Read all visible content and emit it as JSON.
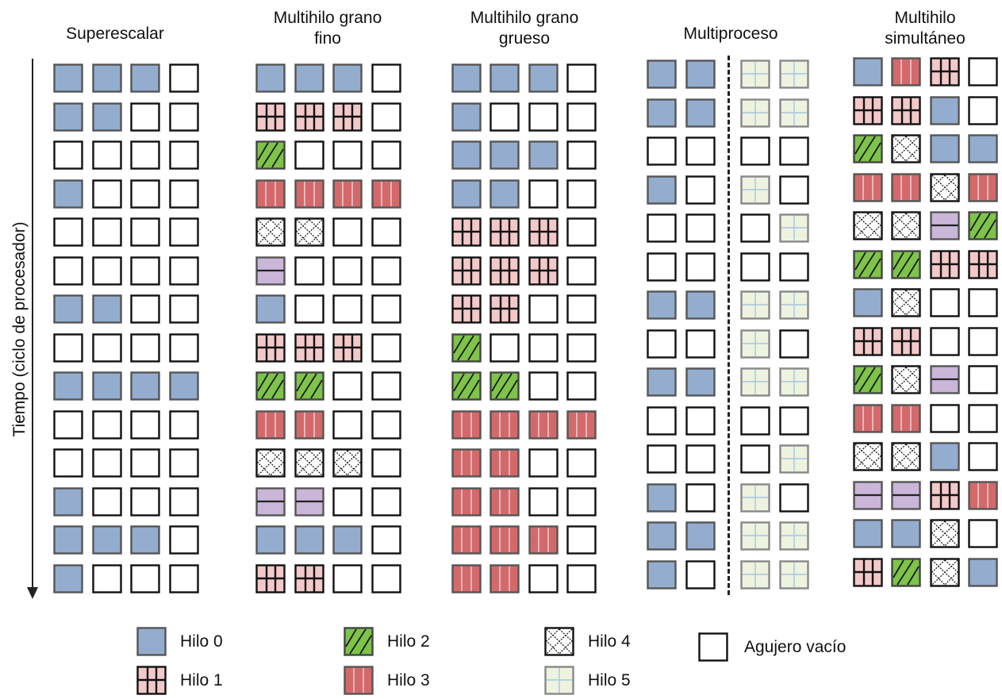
{
  "axis_label": "Tiempo (ciclo de procesador)",
  "colors": {
    "h0": "#94adcf",
    "h1": "#f2c8c8",
    "h2": "#7ec34a",
    "h3": "#d4696a",
    "h4": "#ffffff",
    "h5": "#eef3e0",
    "h6": "#c9b6d8",
    "empty": "#ffffff"
  },
  "columns": [
    {
      "title": "Superescalar",
      "grid": [
        [
          "h0",
          "h0",
          "h0",
          "e"
        ],
        [
          "h0",
          "h0",
          "e",
          "e"
        ],
        [
          "e",
          "e",
          "e",
          "e"
        ],
        [
          "h0",
          "e",
          "e",
          "e"
        ],
        [
          "e",
          "e",
          "e",
          "e"
        ],
        [
          "e",
          "e",
          "e",
          "e"
        ],
        [
          "h0",
          "h0",
          "e",
          "e"
        ],
        [
          "e",
          "e",
          "e",
          "e"
        ],
        [
          "h0",
          "h0",
          "h0",
          "h0"
        ],
        [
          "e",
          "e",
          "e",
          "e"
        ],
        [
          "e",
          "e",
          "e",
          "e"
        ],
        [
          "h0",
          "e",
          "e",
          "e"
        ],
        [
          "h0",
          "h0",
          "h0",
          "e"
        ],
        [
          "h0",
          "e",
          "e",
          "e"
        ]
      ]
    },
    {
      "title": "Multihilo grano\nfino",
      "grid": [
        [
          "h0",
          "h0",
          "h0",
          "e"
        ],
        [
          "h1",
          "h1",
          "h1",
          "e"
        ],
        [
          "h2",
          "e",
          "e",
          "e"
        ],
        [
          "h3",
          "h3",
          "h3",
          "h3"
        ],
        [
          "h4",
          "h4",
          "e",
          "e"
        ],
        [
          "h6",
          "e",
          "e",
          "e"
        ],
        [
          "h0",
          "e",
          "e",
          "e"
        ],
        [
          "h1",
          "h1",
          "h1",
          "e"
        ],
        [
          "h2",
          "h2",
          "e",
          "e"
        ],
        [
          "h3",
          "h3",
          "e",
          "e"
        ],
        [
          "h4",
          "h4",
          "h4",
          "e"
        ],
        [
          "h6",
          "h6",
          "e",
          "e"
        ],
        [
          "h0",
          "h0",
          "h0",
          "e"
        ],
        [
          "h1",
          "h1",
          "e",
          "e"
        ]
      ]
    },
    {
      "title": "Multihilo grano\ngrueso",
      "grid": [
        [
          "h0",
          "h0",
          "h0",
          "e"
        ],
        [
          "h0",
          "e",
          "e",
          "e"
        ],
        [
          "h0",
          "h0",
          "h0",
          "e"
        ],
        [
          "h0",
          "h0",
          "e",
          "e"
        ],
        [
          "h1",
          "h1",
          "h1",
          "e"
        ],
        [
          "h1",
          "h1",
          "h1",
          "e"
        ],
        [
          "h1",
          "h1",
          "e",
          "e"
        ],
        [
          "h2",
          "e",
          "e",
          "e"
        ],
        [
          "h2",
          "h2",
          "e",
          "e"
        ],
        [
          "h3",
          "h3",
          "h3",
          "h3"
        ],
        [
          "h3",
          "h3",
          "e",
          "e"
        ],
        [
          "h3",
          "h3",
          "e",
          "e"
        ],
        [
          "h3",
          "h3",
          "h3",
          "e"
        ],
        [
          "h3",
          "h3",
          "e",
          "e"
        ]
      ]
    },
    {
      "title": "Multiproceso",
      "grid": [
        [
          "h0",
          "h0",
          "h5",
          "h5"
        ],
        [
          "h0",
          "h0",
          "h5",
          "h5"
        ],
        [
          "e",
          "e",
          "e",
          "e"
        ],
        [
          "h0",
          "e",
          "h5",
          "e"
        ],
        [
          "e",
          "e",
          "e",
          "h5"
        ],
        [
          "e",
          "e",
          "e",
          "e"
        ],
        [
          "h0",
          "h0",
          "h5",
          "h5"
        ],
        [
          "e",
          "e",
          "h5",
          "e"
        ],
        [
          "h0",
          "h0",
          "h5",
          "h5"
        ],
        [
          "e",
          "e",
          "e",
          "e"
        ],
        [
          "e",
          "e",
          "e",
          "h5"
        ],
        [
          "h0",
          "e",
          "h5",
          "e"
        ],
        [
          "h0",
          "h0",
          "h5",
          "h5"
        ],
        [
          "h0",
          "e",
          "h5",
          "h5"
        ]
      ]
    },
    {
      "title": "Multihilo\nsimultáneo",
      "grid": [
        [
          "h0",
          "h3",
          "h1",
          "e"
        ],
        [
          "h1",
          "h1",
          "h0",
          "e"
        ],
        [
          "h2",
          "h4",
          "h0",
          "h0"
        ],
        [
          "h3",
          "h3",
          "h4",
          "h3"
        ],
        [
          "h4",
          "h4",
          "h6",
          "h2"
        ],
        [
          "h2",
          "h2",
          "h1",
          "h1"
        ],
        [
          "h0",
          "h4",
          "e",
          "e"
        ],
        [
          "h1",
          "h1",
          "e",
          "e"
        ],
        [
          "h2",
          "h4",
          "h6",
          "e"
        ],
        [
          "h3",
          "h3",
          "e",
          "e"
        ],
        [
          "h4",
          "h4",
          "h0",
          "e"
        ],
        [
          "h6",
          "h6",
          "h1",
          "h3"
        ],
        [
          "h0",
          "h0",
          "h4",
          "e"
        ],
        [
          "h1",
          "h2",
          "h4",
          "h0"
        ]
      ]
    }
  ],
  "legend": [
    {
      "pattern": "h0",
      "label": "Hilo 0"
    },
    {
      "pattern": "h1",
      "label": "Hilo 1"
    },
    {
      "pattern": "h2",
      "label": "Hilo 2"
    },
    {
      "pattern": "h3",
      "label": "Hilo 3"
    },
    {
      "pattern": "h4",
      "label": "Hilo 4"
    },
    {
      "pattern": "h5",
      "label": "Hilo 5"
    },
    {
      "pattern": "e",
      "label": "Agujero vacío"
    }
  ]
}
